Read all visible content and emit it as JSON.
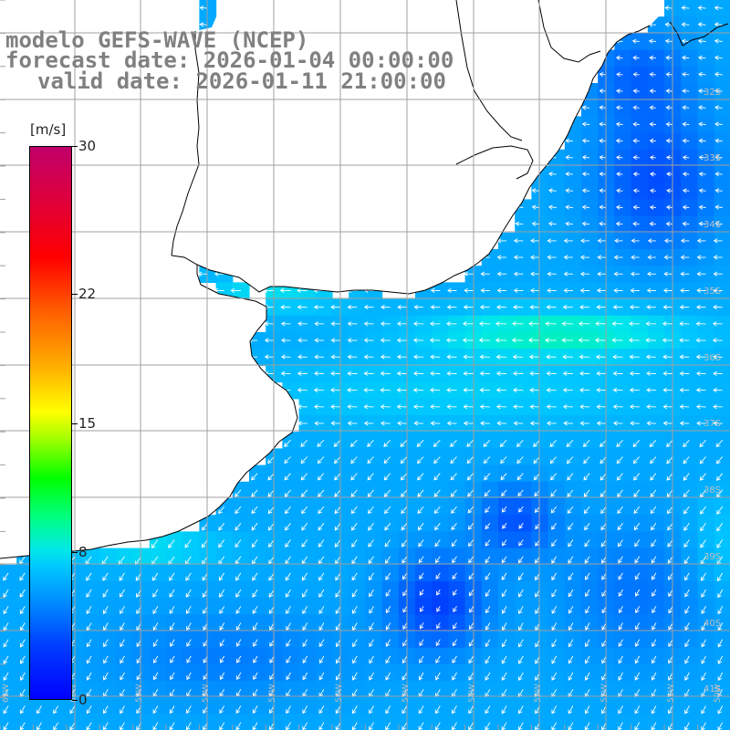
{
  "title": {
    "line1": "modelo GEFS-WAVE (NCEP)",
    "line2": "forecast date: 2026-01-04 00:00:00",
    "line3": "valid date: 2026-01-11 21:00:00"
  },
  "colorbar": {
    "unit": "[m/s]",
    "ticks": [
      {
        "label": "30",
        "value": 30
      },
      {
        "label": "22",
        "value": 22
      },
      {
        "label": "15",
        "value": 15
      },
      {
        "label": "8",
        "value": 8
      },
      {
        "label": "0",
        "value": 0
      }
    ],
    "min": 0,
    "max": 30
  },
  "lat_labels": [
    "32S",
    "33S",
    "34S",
    "35S",
    "36S",
    "37S",
    "38S",
    "39S",
    "40S",
    "41S"
  ],
  "lon_labels": [
    "61W",
    "60W",
    "59W",
    "58W",
    "57W",
    "56W",
    "55W",
    "54W",
    "53W",
    "52W",
    "51W",
    "50W"
  ],
  "colors": {
    "land": "#ffffff",
    "coast": "#000000",
    "grid": "#a0a0a0",
    "arrow": "#ffffff"
  }
}
